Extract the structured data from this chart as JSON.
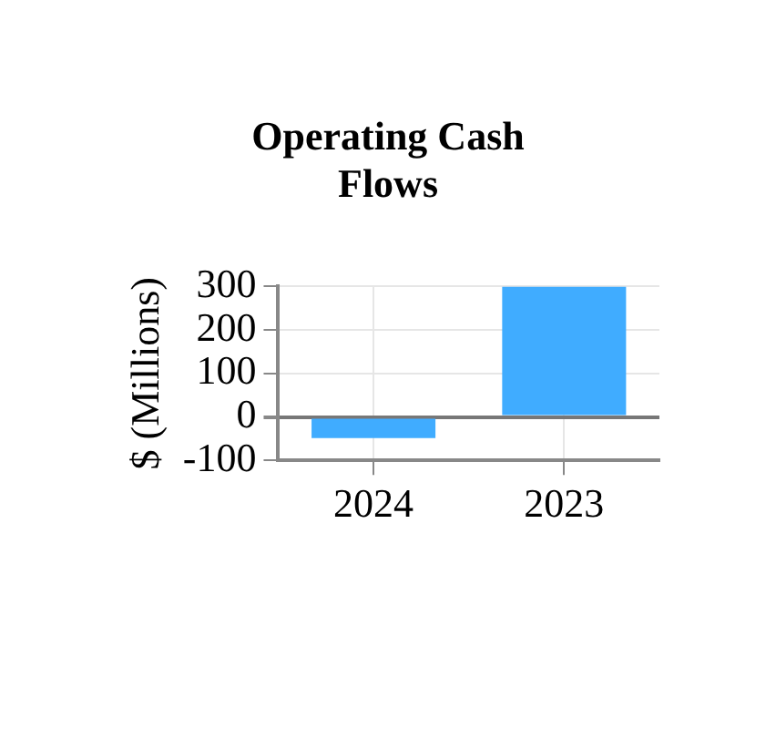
{
  "chart_data": {
    "type": "bar",
    "title": "Operating Cash Flows",
    "ylabel": "$ (Millions)",
    "categories": [
      "2024",
      "2023"
    ],
    "values": [
      -49,
      300
    ],
    "color": "#40acff",
    "ylim": [
      -100,
      300
    ],
    "yticks": [
      -100,
      0,
      100,
      200,
      300
    ],
    "grid": true,
    "legend": false
  }
}
